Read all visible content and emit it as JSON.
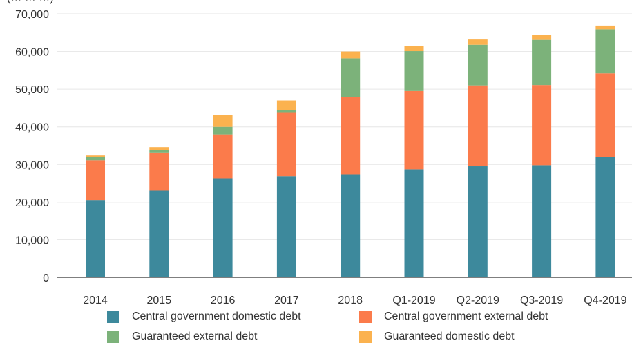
{
  "chart_data": {
    "type": "bar",
    "stacked": true,
    "title_partial": "(… … …)",
    "categories": [
      "2014",
      "2015",
      "2016",
      "2017",
      "2018",
      "Q1-2019",
      "Q2-2019",
      "Q3-2019",
      "Q4-2019"
    ],
    "series": [
      {
        "name": "Central government domestic debt",
        "color": "#3d899c",
        "values": [
          20500,
          23000,
          26300,
          26900,
          27400,
          28700,
          29500,
          29800,
          32000
        ]
      },
      {
        "name": "Central government external debt",
        "color": "#fb7b4b",
        "values": [
          10600,
          10200,
          11700,
          16800,
          20600,
          20800,
          21500,
          21300,
          22200
        ]
      },
      {
        "name": "Guaranteed external debt",
        "color": "#7cb27a",
        "values": [
          800,
          600,
          2000,
          800,
          10200,
          10600,
          10800,
          12000,
          11700
        ]
      },
      {
        "name": "Guaranteed domestic debt",
        "color": "#fbb24f",
        "values": [
          500,
          800,
          3100,
          2500,
          1800,
          1400,
          1400,
          1300,
          1000
        ]
      }
    ],
    "ylim": [
      0,
      70000
    ],
    "yticks": [
      0,
      10000,
      20000,
      30000,
      40000,
      50000,
      60000,
      70000
    ],
    "ytick_labels": [
      "0",
      "10,000",
      "20,000",
      "30,000",
      "40,000",
      "50,000",
      "60,000",
      "70,000"
    ],
    "grid": true,
    "legend_position": "bottom"
  }
}
